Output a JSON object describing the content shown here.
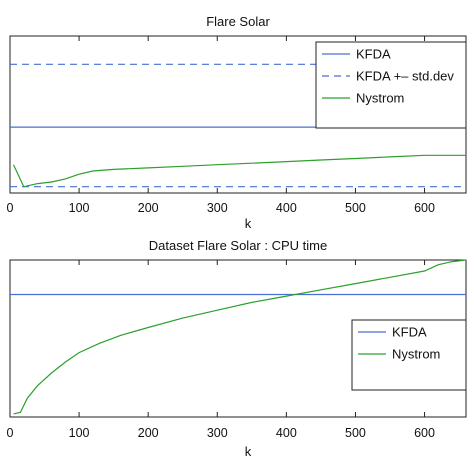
{
  "chart_data": [
    {
      "type": "line",
      "title": "Flare Solar",
      "xlabel": "k",
      "ylabel": "",
      "xlim": [
        0,
        660
      ],
      "ylim": [
        0,
        1
      ],
      "xticks": [
        0,
        100,
        200,
        300,
        400,
        500,
        600
      ],
      "xtick_labels": [
        "0",
        "100",
        "200",
        "300",
        "400",
        "500",
        "600"
      ],
      "legend_position": "top-right",
      "series": [
        {
          "name": "KFDA",
          "color": "#4a6fd0",
          "style": "solid",
          "x": [
            0,
            660
          ],
          "y": [
            0.42,
            0.42
          ]
        },
        {
          "name": "KFDA +– std.dev",
          "color": "#4a6fd0",
          "style": "dashed",
          "x": [
            0,
            660
          ],
          "y": [
            0.82,
            0.82
          ]
        },
        {
          "name": "",
          "color": "#4a6fd0",
          "style": "dashed",
          "x": [
            0,
            660
          ],
          "y": [
            0.04,
            0.04
          ]
        },
        {
          "name": "Nystrom",
          "color": "#2ca02c",
          "style": "solid",
          "x": [
            5,
            20,
            40,
            60,
            80,
            100,
            120,
            150,
            200,
            250,
            300,
            350,
            400,
            450,
            500,
            550,
            600,
            650,
            660
          ],
          "y": [
            0.18,
            0.04,
            0.06,
            0.07,
            0.09,
            0.12,
            0.14,
            0.15,
            0.16,
            0.17,
            0.18,
            0.19,
            0.2,
            0.21,
            0.22,
            0.23,
            0.24,
            0.24,
            0.24
          ]
        }
      ]
    },
    {
      "type": "line",
      "title": "Dataset Flare Solar : CPU time",
      "xlabel": "k",
      "ylabel": "",
      "xlim": [
        0,
        660
      ],
      "ylim": [
        0,
        1
      ],
      "xticks": [
        0,
        100,
        200,
        300,
        400,
        500,
        600
      ],
      "xtick_labels": [
        "0",
        "100",
        "200",
        "300",
        "400",
        "500",
        "600"
      ],
      "legend_position": "right",
      "series": [
        {
          "name": "KFDA",
          "color": "#4a6fd0",
          "style": "solid",
          "x": [
            0,
            660
          ],
          "y": [
            0.78,
            0.78
          ]
        },
        {
          "name": "Nystrom",
          "color": "#2ca02c",
          "style": "solid",
          "x": [
            5,
            15,
            25,
            40,
            60,
            80,
            100,
            130,
            160,
            200,
            250,
            300,
            350,
            400,
            450,
            500,
            550,
            600,
            620,
            640,
            660
          ],
          "y": [
            0.02,
            0.03,
            0.12,
            0.2,
            0.28,
            0.35,
            0.41,
            0.47,
            0.52,
            0.57,
            0.63,
            0.68,
            0.73,
            0.77,
            0.81,
            0.85,
            0.89,
            0.93,
            0.97,
            0.99,
            1.0
          ]
        }
      ]
    }
  ]
}
